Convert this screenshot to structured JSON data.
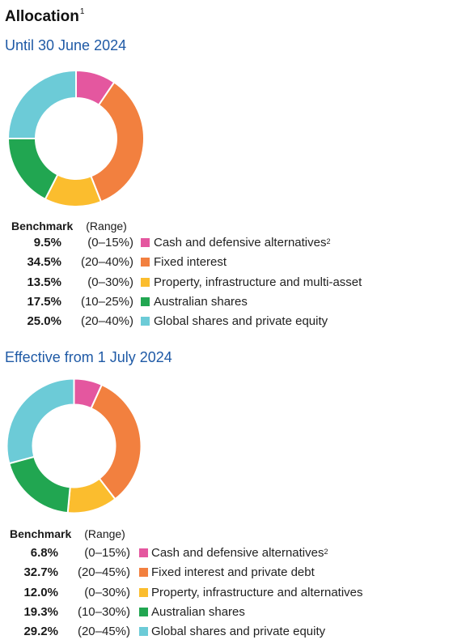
{
  "title": "Allocation",
  "title_note": "1",
  "legend_header": {
    "benchmark": "Benchmark",
    "range": "(Range)"
  },
  "chart_data": [
    {
      "type": "pie",
      "title": "Until 30 June 2024",
      "categories": [
        "Cash and defensive alternatives",
        "Fixed interest",
        "Property, infrastructure and multi-asset",
        "Australian shares",
        "Global shares and private equity"
      ],
      "values": [
        9.5,
        34.5,
        13.5,
        17.5,
        25.0
      ],
      "value_labels": [
        "9.5%",
        "34.5%",
        "13.5%",
        "17.5%",
        "25.0%"
      ],
      "ranges": [
        "(0–15%)",
        "(20–40%)",
        "(0–30%)",
        "(10–25%)",
        "(20–40%)"
      ],
      "label_notes": [
        "2",
        "",
        "",
        "",
        ""
      ],
      "colors": [
        "#e4579f",
        "#f2803f",
        "#fbbd2e",
        "#21a651",
        "#6ccbd7"
      ],
      "donut": true
    },
    {
      "type": "pie",
      "title": "Effective from 1 July 2024",
      "categories": [
        "Cash and defensive alternatives",
        "Fixed interest and private debt",
        "Property, infrastructure and alternatives",
        "Australian shares",
        "Global shares and private equity"
      ],
      "values": [
        6.8,
        32.7,
        12.0,
        19.3,
        29.2
      ],
      "value_labels": [
        "6.8%",
        "32.7%",
        "12.0%",
        "19.3%",
        "29.2%"
      ],
      "ranges": [
        "(0–15%)",
        "(20–45%)",
        "(0–30%)",
        "(10–30%)",
        "(20–45%)"
      ],
      "label_notes": [
        "2",
        "",
        "",
        "",
        ""
      ],
      "colors": [
        "#e4579f",
        "#f2803f",
        "#fbbd2e",
        "#21a651",
        "#6ccbd7"
      ],
      "donut": true
    }
  ]
}
